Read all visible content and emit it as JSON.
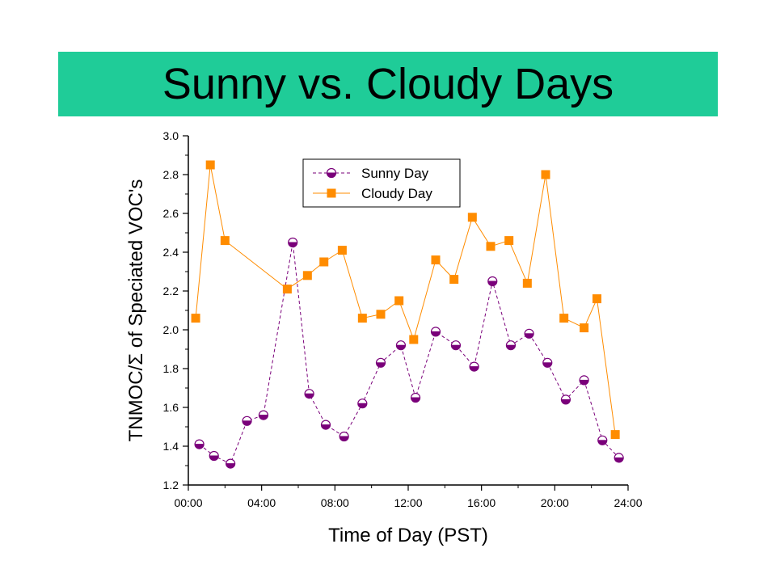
{
  "slide": {
    "title": "Sunny vs. Cloudy Days",
    "title_bar_color": "#1fcc98"
  },
  "chart_data": {
    "type": "line",
    "xlabel": "Time of Day (PST)",
    "ylabel": "TNMOC/Σ of Speciated VOC's",
    "xlim": [
      0,
      24
    ],
    "ylim": [
      1.2,
      3.0
    ],
    "x_ticks": [
      {
        "value": 0,
        "label": "00:00"
      },
      {
        "value": 4,
        "label": "04:00"
      },
      {
        "value": 8,
        "label": "08:00"
      },
      {
        "value": 12,
        "label": "12:00"
      },
      {
        "value": 16,
        "label": "16:00"
      },
      {
        "value": 20,
        "label": "20:00"
      },
      {
        "value": 24,
        "label": "24:00"
      }
    ],
    "y_ticks": [
      1.2,
      1.4,
      1.6,
      1.8,
      2.0,
      2.2,
      2.4,
      2.6,
      2.8,
      3.0
    ],
    "y_tick_labels": [
      "1.2",
      "1.4",
      "1.6",
      "1.8",
      "2.0",
      "2.2",
      "2.4",
      "2.6",
      "2.8",
      "3.0"
    ],
    "legend_position": "top-center",
    "series": [
      {
        "name": "Sunny Day",
        "color": "#7a007a",
        "line_style": "dashed",
        "marker": "half-filled-circle",
        "x": [
          0.6,
          1.4,
          2.3,
          3.2,
          4.1,
          5.7,
          6.6,
          7.5,
          8.5,
          9.5,
          10.5,
          11.6,
          12.4,
          13.5,
          14.6,
          15.6,
          16.6,
          17.6,
          18.6,
          19.6,
          20.6,
          21.6,
          22.6,
          23.5
        ],
        "values": [
          1.41,
          1.35,
          1.31,
          1.53,
          1.56,
          2.45,
          1.67,
          1.51,
          1.45,
          1.62,
          1.83,
          1.92,
          1.65,
          1.99,
          1.92,
          1.81,
          2.25,
          1.92,
          1.98,
          1.83,
          1.64,
          1.74,
          1.43,
          1.34
        ]
      },
      {
        "name": "Cloudy Day",
        "color": "#ff8c00",
        "line_style": "solid",
        "marker": "square",
        "x": [
          0.4,
          1.2,
          2.0,
          5.4,
          6.5,
          7.4,
          8.4,
          9.5,
          10.5,
          11.5,
          12.3,
          13.5,
          14.5,
          15.5,
          16.5,
          17.5,
          18.5,
          19.5,
          20.5,
          21.6,
          22.3,
          23.3
        ],
        "values": [
          2.06,
          2.85,
          2.46,
          2.21,
          2.28,
          2.35,
          2.41,
          2.06,
          2.08,
          2.15,
          1.95,
          2.36,
          2.26,
          2.58,
          2.43,
          2.46,
          2.24,
          2.8,
          2.06,
          2.01,
          2.16,
          1.46
        ]
      }
    ]
  }
}
